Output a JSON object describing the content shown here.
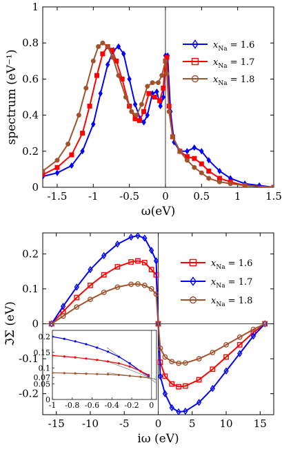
{
  "chart_data": [
    {
      "type": "line",
      "xlabel": "ω(eV)",
      "ylabel": "spectrum (eV⁻¹)",
      "xlim": [
        -1.7,
        1.5
      ],
      "ylim": [
        0,
        1
      ],
      "xticks": [
        -1.5,
        -1,
        -0.5,
        0,
        0.5,
        1,
        1.5
      ],
      "xtick_labels": [
        "-1.5",
        "-1",
        "-0.5",
        "0",
        "0.5",
        "1",
        "1.5"
      ],
      "yticks": [
        0,
        0.2,
        0.4,
        0.6,
        0.8,
        1
      ],
      "ytick_labels": [
        "0",
        "0.2",
        "0.4",
        "0.6",
        "0.8",
        "1"
      ],
      "vline_x": 0,
      "legend_position": "right",
      "grid": false,
      "series": [
        {
          "name": "x_Na = 1.6",
          "legend_main": "x",
          "legend_sub": "Na",
          "legend_value": " = 1.6",
          "color": "#0000ff",
          "marker": "diamond",
          "points": [
            [
              -1.7,
              0.06
            ],
            [
              -1.5,
              0.08
            ],
            [
              -1.3,
              0.12
            ],
            [
              -1.15,
              0.2
            ],
            [
              -1.0,
              0.35
            ],
            [
              -0.9,
              0.52
            ],
            [
              -0.8,
              0.68
            ],
            [
              -0.72,
              0.76
            ],
            [
              -0.65,
              0.78
            ],
            [
              -0.58,
              0.74
            ],
            [
              -0.5,
              0.6
            ],
            [
              -0.42,
              0.46
            ],
            [
              -0.35,
              0.38
            ],
            [
              -0.3,
              0.36
            ],
            [
              -0.25,
              0.4
            ],
            [
              -0.18,
              0.52
            ],
            [
              -0.12,
              0.53
            ],
            [
              -0.07,
              0.45
            ],
            [
              -0.03,
              0.5
            ],
            [
              0.0,
              0.73
            ],
            [
              0.03,
              0.73
            ],
            [
              0.07,
              0.42
            ],
            [
              0.12,
              0.25
            ],
            [
              0.2,
              0.2
            ],
            [
              0.3,
              0.2
            ],
            [
              0.4,
              0.22
            ],
            [
              0.5,
              0.2
            ],
            [
              0.6,
              0.15
            ],
            [
              0.75,
              0.09
            ],
            [
              0.9,
              0.05
            ],
            [
              1.1,
              0.02
            ],
            [
              1.3,
              0.01
            ],
            [
              1.5,
              0.0
            ]
          ]
        },
        {
          "name": "x_Na = 1.7",
          "legend_main": "x",
          "legend_sub": "Na",
          "legend_value": " = 1.7",
          "color": "#ff0000",
          "marker": "square",
          "points": [
            [
              -1.7,
              0.07
            ],
            [
              -1.5,
              0.11
            ],
            [
              -1.3,
              0.18
            ],
            [
              -1.15,
              0.3
            ],
            [
              -1.05,
              0.45
            ],
            [
              -0.95,
              0.62
            ],
            [
              -0.87,
              0.74
            ],
            [
              -0.8,
              0.78
            ],
            [
              -0.74,
              0.76
            ],
            [
              -0.68,
              0.7
            ],
            [
              -0.6,
              0.6
            ],
            [
              -0.5,
              0.45
            ],
            [
              -0.42,
              0.38
            ],
            [
              -0.36,
              0.37
            ],
            [
              -0.3,
              0.42
            ],
            [
              -0.23,
              0.52
            ],
            [
              -0.15,
              0.5
            ],
            [
              -0.08,
              0.48
            ],
            [
              -0.03,
              0.55
            ],
            [
              0.0,
              0.7
            ],
            [
              0.02,
              0.72
            ],
            [
              0.05,
              0.45
            ],
            [
              0.1,
              0.28
            ],
            [
              0.2,
              0.2
            ],
            [
              0.3,
              0.17
            ],
            [
              0.4,
              0.16
            ],
            [
              0.5,
              0.13
            ],
            [
              0.6,
              0.09
            ],
            [
              0.75,
              0.05
            ],
            [
              0.9,
              0.03
            ],
            [
              1.1,
              0.01
            ],
            [
              1.5,
              0.0
            ]
          ]
        },
        {
          "name": "x_Na = 1.8",
          "legend_main": "x",
          "legend_sub": "Na",
          "legend_value": " = 1.8",
          "color": "#a0522d",
          "marker": "circle",
          "points": [
            [
              -1.7,
              0.09
            ],
            [
              -1.5,
              0.15
            ],
            [
              -1.35,
              0.24
            ],
            [
              -1.2,
              0.4
            ],
            [
              -1.1,
              0.55
            ],
            [
              -1.0,
              0.7
            ],
            [
              -0.93,
              0.78
            ],
            [
              -0.87,
              0.8
            ],
            [
              -0.8,
              0.78
            ],
            [
              -0.73,
              0.72
            ],
            [
              -0.65,
              0.62
            ],
            [
              -0.55,
              0.5
            ],
            [
              -0.47,
              0.42
            ],
            [
              -0.4,
              0.4
            ],
            [
              -0.33,
              0.46
            ],
            [
              -0.25,
              0.56
            ],
            [
              -0.18,
              0.58
            ],
            [
              -0.1,
              0.58
            ],
            [
              -0.05,
              0.62
            ],
            [
              0.0,
              0.7
            ],
            [
              0.02,
              0.63
            ],
            [
              0.05,
              0.42
            ],
            [
              0.1,
              0.28
            ],
            [
              0.2,
              0.2
            ],
            [
              0.3,
              0.15
            ],
            [
              0.4,
              0.11
            ],
            [
              0.5,
              0.08
            ],
            [
              0.6,
              0.05
            ],
            [
              0.75,
              0.03
            ],
            [
              0.9,
              0.02
            ],
            [
              1.1,
              0.01
            ],
            [
              1.5,
              0.0
            ]
          ]
        }
      ]
    },
    {
      "type": "line",
      "xlabel": "iω (eV)",
      "ylabel": "ℑΣ (eV)",
      "xlim": [
        -17,
        17
      ],
      "ylim": [
        -0.26,
        0.26
      ],
      "xticks": [
        -15,
        -10,
        -5,
        0,
        5,
        10,
        15
      ],
      "xtick_labels": [
        "-15",
        "-10",
        "-5",
        "0",
        "5",
        "10",
        "15"
      ],
      "yticks": [
        -0.2,
        -0.1,
        0,
        0.1,
        0.2
      ],
      "ytick_labels": [
        "-0.2",
        "-0.1",
        "0",
        "0.1",
        "0.2"
      ],
      "vline_x": 0,
      "hline_y": 0,
      "legend_position": "right",
      "grid": false,
      "series": [
        {
          "name": "x_Na = 1.6",
          "legend_main": "x",
          "legend_sub": "Na",
          "legend_value": " = 1.6",
          "color": "#ff0000",
          "marker": "square",
          "points": [
            [
              -15.7,
              0.0
            ],
            [
              -14,
              0.035
            ],
            [
              -12,
              0.075
            ],
            [
              -10,
              0.11
            ],
            [
              -8,
              0.14
            ],
            [
              -6,
              0.163
            ],
            [
              -4,
              0.177
            ],
            [
              -3,
              0.18
            ],
            [
              -2,
              0.175
            ],
            [
              -1,
              0.155
            ],
            [
              -0.3,
              0.14
            ],
            [
              0,
              0.0
            ],
            [
              0.3,
              -0.11
            ],
            [
              1,
              -0.15
            ],
            [
              2,
              -0.172
            ],
            [
              3,
              -0.18
            ],
            [
              4,
              -0.178
            ],
            [
              6,
              -0.16
            ],
            [
              8,
              -0.13
            ],
            [
              10,
              -0.095
            ],
            [
              12,
              -0.06
            ],
            [
              14,
              -0.025
            ],
            [
              15.7,
              0.0
            ]
          ]
        },
        {
          "name": "x_Na = 1.7",
          "legend_main": "x",
          "legend_sub": "Na",
          "legend_value": " = 1.7",
          "color": "#0000ff",
          "marker": "diamond",
          "points": [
            [
              -15.7,
              0.0
            ],
            [
              -14,
              0.05
            ],
            [
              -12,
              0.105
            ],
            [
              -10,
              0.155
            ],
            [
              -8,
              0.195
            ],
            [
              -6,
              0.228
            ],
            [
              -4,
              0.248
            ],
            [
              -3,
              0.252
            ],
            [
              -2,
              0.245
            ],
            [
              -1,
              0.21
            ],
            [
              -0.3,
              0.18
            ],
            [
              0,
              0.0
            ],
            [
              0.3,
              -0.15
            ],
            [
              1,
              -0.2
            ],
            [
              2,
              -0.24
            ],
            [
              3,
              -0.252
            ],
            [
              4,
              -0.25
            ],
            [
              6,
              -0.225
            ],
            [
              8,
              -0.185
            ],
            [
              10,
              -0.135
            ],
            [
              12,
              -0.085
            ],
            [
              14,
              -0.035
            ],
            [
              15.7,
              0.0
            ]
          ]
        },
        {
          "name": "x_Na = 1.8",
          "legend_main": "x",
          "legend_sub": "Na",
          "legend_value": " = 1.8",
          "color": "#a0522d",
          "marker": "circle",
          "points": [
            [
              -15.7,
              0.0
            ],
            [
              -14,
              0.022
            ],
            [
              -12,
              0.048
            ],
            [
              -10,
              0.07
            ],
            [
              -8,
              0.09
            ],
            [
              -6,
              0.105
            ],
            [
              -4,
              0.113
            ],
            [
              -3,
              0.114
            ],
            [
              -2,
              0.11
            ],
            [
              -1,
              0.1
            ],
            [
              -0.3,
              0.085
            ],
            [
              0,
              0.0
            ],
            [
              0.3,
              -0.07
            ],
            [
              1,
              -0.095
            ],
            [
              2,
              -0.108
            ],
            [
              3,
              -0.113
            ],
            [
              4,
              -0.112
            ],
            [
              6,
              -0.1
            ],
            [
              8,
              -0.082
            ],
            [
              10,
              -0.06
            ],
            [
              12,
              -0.038
            ],
            [
              14,
              -0.016
            ],
            [
              15.7,
              0.0
            ]
          ]
        }
      ],
      "inset": {
        "xlim": [
          -1,
          0.05
        ],
        "ylim": [
          0,
          0.22
        ],
        "xticks": [
          -1,
          -0.8,
          -0.6,
          -0.4,
          -0.2,
          0
        ],
        "xtick_labels": [
          "-1",
          "-0.8",
          "-0.6",
          "-0.4",
          "-0.2",
          "0"
        ],
        "yticks": [
          0,
          0.05,
          0.07,
          0.1,
          0.15,
          0.2
        ],
        "ytick_labels": [
          "0",
          "0.05",
          "0.07",
          "0.1",
          "0.15",
          "0.2"
        ],
        "series": [
          {
            "color": "#0000ff",
            "points": [
              [
                -1,
                0.2
              ],
              [
                -0.88,
                0.193
              ],
              [
                -0.77,
                0.185
              ],
              [
                -0.66,
                0.176
              ],
              [
                -0.55,
                0.165
              ],
              [
                -0.44,
                0.152
              ],
              [
                -0.33,
                0.136
              ],
              [
                -0.22,
                0.115
              ],
              [
                -0.11,
                0.09
              ],
              [
                -0.03,
                0.075
              ]
            ]
          },
          {
            "color": "#ff0000",
            "points": [
              [
                -1,
                0.14
              ],
              [
                -0.88,
                0.137
              ],
              [
                -0.77,
                0.134
              ],
              [
                -0.66,
                0.13
              ],
              [
                -0.55,
                0.126
              ],
              [
                -0.44,
                0.121
              ],
              [
                -0.33,
                0.115
              ],
              [
                -0.22,
                0.105
              ],
              [
                -0.11,
                0.09
              ],
              [
                -0.03,
                0.078
              ]
            ]
          },
          {
            "color": "#a0522d",
            "points": [
              [
                -1,
                0.085
              ],
              [
                -0.88,
                0.084
              ],
              [
                -0.77,
                0.083
              ],
              [
                -0.66,
                0.082
              ],
              [
                -0.55,
                0.081
              ],
              [
                -0.44,
                0.08
              ],
              [
                -0.33,
                0.078
              ],
              [
                -0.22,
                0.075
              ],
              [
                -0.11,
                0.072
              ],
              [
                -0.03,
                0.07
              ]
            ]
          }
        ],
        "fit_lines": [
          [
            [
              -0.45,
              0.165
            ],
            [
              0.05,
              0.052
            ]
          ],
          [
            [
              -0.45,
              0.122
            ],
            [
              0.05,
              0.062
            ]
          ],
          [
            [
              -0.45,
              0.085
            ],
            [
              0.05,
              0.065
            ]
          ]
        ]
      }
    }
  ]
}
